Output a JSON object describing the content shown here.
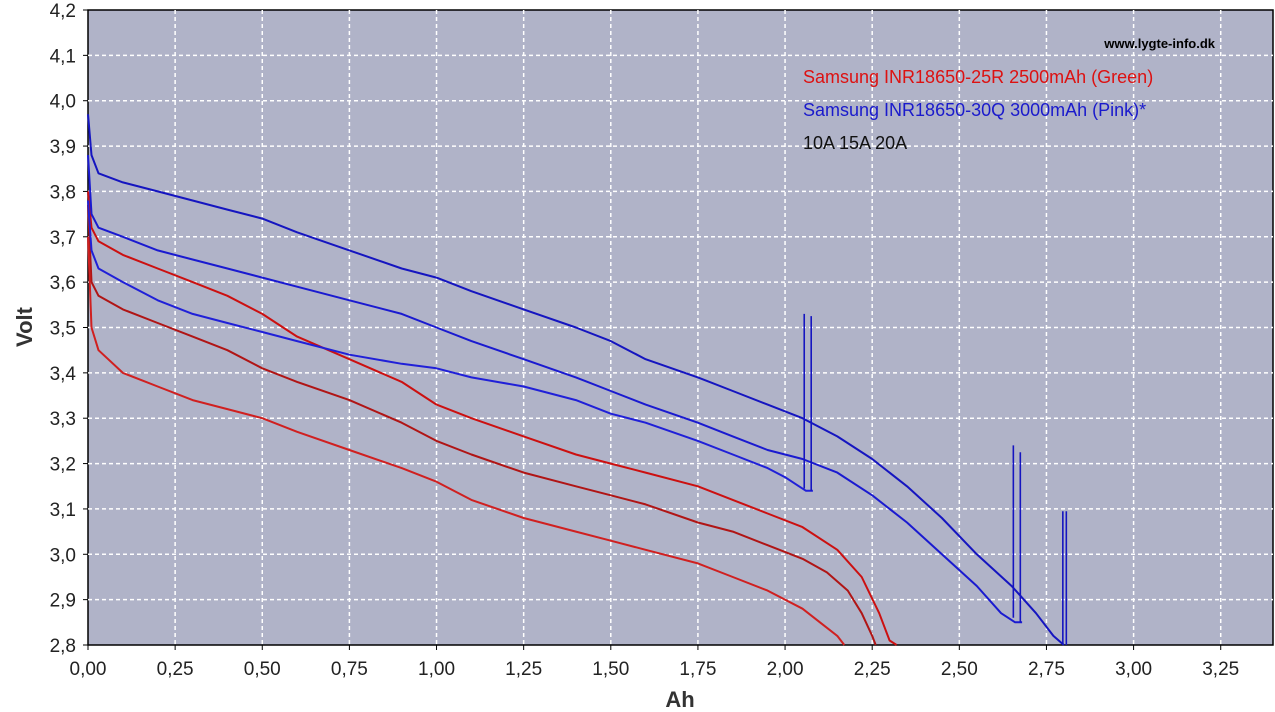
{
  "chart_data": {
    "type": "line",
    "title": "",
    "watermark": "www.lygte-info.dk",
    "xlabel": "Ah",
    "ylabel": "Volt",
    "xlim": [
      0,
      3.4
    ],
    "ylim": [
      2.8,
      4.2
    ],
    "x_ticks": [
      "0,00",
      "0,25",
      "0,50",
      "0,75",
      "1,00",
      "1,25",
      "1,50",
      "1,75",
      "2,00",
      "2,25",
      "2,50",
      "2,75",
      "3,00",
      "3,25"
    ],
    "x_tick_values": [
      0,
      0.25,
      0.5,
      0.75,
      1.0,
      1.25,
      1.5,
      1.75,
      2.0,
      2.25,
      2.5,
      2.75,
      3.0,
      3.25
    ],
    "y_ticks": [
      "2,8",
      "2,9",
      "3,0",
      "3,1",
      "3,2",
      "3,3",
      "3,4",
      "3,5",
      "3,6",
      "3,7",
      "3,8",
      "3,9",
      "4,0",
      "4,1",
      "4,2"
    ],
    "y_tick_values": [
      2.8,
      2.9,
      3.0,
      3.1,
      3.2,
      3.3,
      3.4,
      3.5,
      3.6,
      3.7,
      3.8,
      3.9,
      4.0,
      4.1,
      4.2
    ],
    "grid": true,
    "background_color": "#b0b3c8",
    "legend_position": "top-right",
    "legend": [
      {
        "text": "Samsung INR18650-25R 2500mAh (Green)",
        "color": "#dd1111"
      },
      {
        "text": "Samsung INR18650-30Q 3000mAh (Pink)*",
        "color": "#1a1acc"
      },
      {
        "text": "10A 15A 20A",
        "color": "#111111"
      }
    ],
    "series": [
      {
        "group": "25R",
        "color": "#cc1010",
        "x": [
          0,
          0.01,
          0.03,
          0.1,
          0.2,
          0.3,
          0.4,
          0.5,
          0.6,
          0.75,
          0.9,
          1.0,
          1.1,
          1.25,
          1.4,
          1.5,
          1.6,
          1.75,
          1.85,
          1.95,
          2.05,
          2.15,
          2.22,
          2.27,
          2.3,
          2.32
        ],
        "y": [
          3.8,
          3.72,
          3.69,
          3.66,
          3.63,
          3.6,
          3.57,
          3.53,
          3.48,
          3.43,
          3.38,
          3.33,
          3.3,
          3.26,
          3.22,
          3.2,
          3.18,
          3.15,
          3.12,
          3.09,
          3.06,
          3.01,
          2.95,
          2.87,
          2.81,
          2.8
        ]
      },
      {
        "group": "25R",
        "color": "#b01515",
        "x": [
          0,
          0.01,
          0.03,
          0.1,
          0.2,
          0.3,
          0.4,
          0.5,
          0.6,
          0.75,
          0.9,
          1.0,
          1.1,
          1.25,
          1.4,
          1.5,
          1.6,
          1.75,
          1.85,
          1.95,
          2.05,
          2.12,
          2.18,
          2.22,
          2.25,
          2.26
        ],
        "y": [
          3.77,
          3.6,
          3.57,
          3.54,
          3.51,
          3.48,
          3.45,
          3.41,
          3.38,
          3.34,
          3.29,
          3.25,
          3.22,
          3.18,
          3.15,
          3.13,
          3.11,
          3.07,
          3.05,
          3.02,
          2.99,
          2.96,
          2.92,
          2.87,
          2.82,
          2.8
        ]
      },
      {
        "group": "25R",
        "color": "#d02020",
        "x": [
          0,
          0.01,
          0.03,
          0.1,
          0.2,
          0.3,
          0.4,
          0.5,
          0.6,
          0.75,
          0.9,
          1.0,
          1.1,
          1.25,
          1.4,
          1.5,
          1.6,
          1.75,
          1.85,
          1.95,
          2.05,
          2.1,
          2.15,
          2.17
        ],
        "y": [
          3.7,
          3.5,
          3.45,
          3.4,
          3.37,
          3.34,
          3.32,
          3.3,
          3.27,
          3.23,
          3.19,
          3.16,
          3.12,
          3.08,
          3.05,
          3.03,
          3.01,
          2.98,
          2.95,
          2.92,
          2.88,
          2.85,
          2.82,
          2.8
        ]
      },
      {
        "group": "30Q",
        "color": "#1515c0",
        "x": [
          0,
          0.01,
          0.03,
          0.1,
          0.2,
          0.3,
          0.4,
          0.5,
          0.6,
          0.75,
          0.9,
          1.0,
          1.1,
          1.25,
          1.4,
          1.5,
          1.6,
          1.75,
          1.85,
          1.95,
          2.05,
          2.15,
          2.25,
          2.35,
          2.45,
          2.55,
          2.65,
          2.72,
          2.77,
          2.8
        ],
        "y": [
          3.97,
          3.88,
          3.84,
          3.82,
          3.8,
          3.78,
          3.76,
          3.74,
          3.71,
          3.67,
          3.63,
          3.61,
          3.58,
          3.54,
          3.5,
          3.47,
          3.43,
          3.39,
          3.36,
          3.33,
          3.3,
          3.26,
          3.21,
          3.15,
          3.08,
          3.0,
          2.93,
          2.87,
          2.82,
          2.8
        ]
      },
      {
        "group": "30Q",
        "color": "#1a1ad0",
        "x": [
          0,
          0.01,
          0.03,
          0.1,
          0.2,
          0.3,
          0.4,
          0.5,
          0.6,
          0.75,
          0.9,
          1.0,
          1.1,
          1.25,
          1.4,
          1.5,
          1.6,
          1.75,
          1.85,
          1.95,
          2.05,
          2.15,
          2.25,
          2.35,
          2.45,
          2.55,
          2.62,
          2.66,
          2.68
        ],
        "y": [
          3.88,
          3.75,
          3.72,
          3.7,
          3.67,
          3.65,
          3.63,
          3.61,
          3.59,
          3.56,
          3.53,
          3.5,
          3.47,
          3.43,
          3.39,
          3.36,
          3.33,
          3.29,
          3.26,
          3.23,
          3.21,
          3.18,
          3.13,
          3.07,
          3.0,
          2.93,
          2.87,
          2.85,
          2.85
        ]
      },
      {
        "group": "30Q",
        "color": "#2020d8",
        "x": [
          0,
          0.01,
          0.03,
          0.1,
          0.2,
          0.3,
          0.4,
          0.5,
          0.6,
          0.75,
          0.9,
          1.0,
          1.1,
          1.25,
          1.4,
          1.5,
          1.6,
          1.75,
          1.85,
          1.95,
          2.0,
          2.04,
          2.06,
          2.08
        ],
        "y": [
          3.78,
          3.67,
          3.63,
          3.6,
          3.56,
          3.53,
          3.51,
          3.49,
          3.47,
          3.44,
          3.42,
          3.41,
          3.39,
          3.37,
          3.34,
          3.31,
          3.29,
          3.25,
          3.22,
          3.19,
          3.17,
          3.15,
          3.14,
          3.14
        ]
      }
    ],
    "spikes": [
      {
        "x": 2.055,
        "y_low": 3.145,
        "y_high": 3.53,
        "color": "#1515c0"
      },
      {
        "x": 2.075,
        "y_low": 3.14,
        "y_high": 3.525,
        "color": "#1515c0"
      },
      {
        "x": 2.655,
        "y_low": 2.86,
        "y_high": 3.24,
        "color": "#1515c0"
      },
      {
        "x": 2.675,
        "y_low": 2.85,
        "y_high": 3.225,
        "color": "#1515c0"
      },
      {
        "x": 2.797,
        "y_low": 2.8,
        "y_high": 3.095,
        "color": "#1515c0"
      },
      {
        "x": 2.807,
        "y_low": 2.8,
        "y_high": 3.095,
        "color": "#1515c0"
      }
    ]
  }
}
